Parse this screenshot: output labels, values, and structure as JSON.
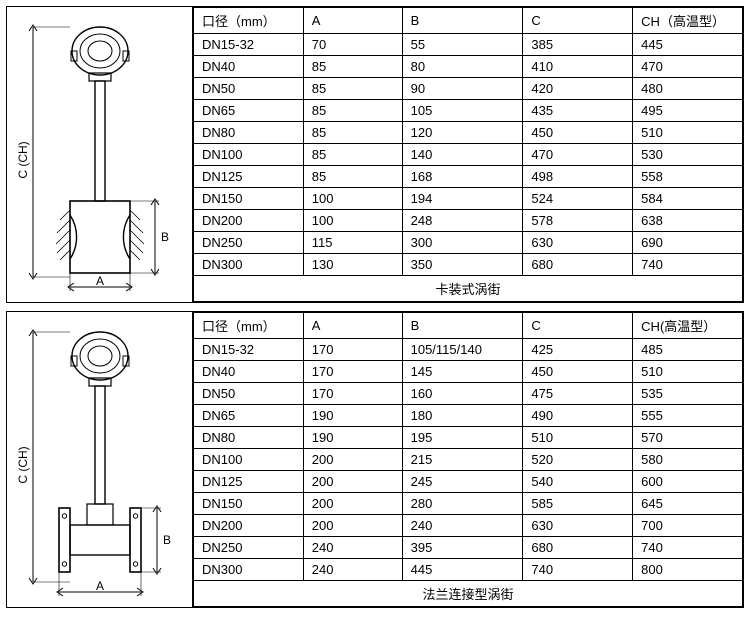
{
  "panels": [
    {
      "diagram": {
        "type": "wafer",
        "height_label": "C (CH)",
        "width_label": "A",
        "side_label": "B",
        "stroke": "#000000",
        "stroke_width": 1.2,
        "hatch_stroke": "#000000"
      },
      "table": {
        "columns": [
          "口径（mm）",
          "A",
          "B",
          "C",
          "CH（高温型）"
        ],
        "col_widths_pct": [
          20,
          18,
          22,
          20,
          20
        ],
        "rows": [
          [
            "DN15-32",
            "70",
            "55",
            "385",
            "445"
          ],
          [
            "DN40",
            "85",
            "80",
            "410",
            "470"
          ],
          [
            "DN50",
            "85",
            "90",
            "420",
            "480"
          ],
          [
            "DN65",
            "85",
            "105",
            "435",
            "495"
          ],
          [
            "DN80",
            "85",
            "120",
            "450",
            "510"
          ],
          [
            "DN100",
            "85",
            "140",
            "470",
            "530"
          ],
          [
            "DN125",
            "85",
            "168",
            "498",
            "558"
          ],
          [
            "DN150",
            "100",
            "194",
            "524",
            "584"
          ],
          [
            "DN200",
            "100",
            "248",
            "578",
            "638"
          ],
          [
            "DN250",
            "115",
            "300",
            "630",
            "690"
          ],
          [
            "DN300",
            "130",
            "350",
            "680",
            "740"
          ]
        ],
        "caption": "卡装式涡街"
      }
    },
    {
      "diagram": {
        "type": "flange",
        "height_label": "C (CH)",
        "width_label": "A",
        "side_label": "B",
        "stroke": "#000000",
        "stroke_width": 1.2
      },
      "table": {
        "columns": [
          "口径（mm）",
          "A",
          "B",
          "C",
          "CH(高温型）"
        ],
        "col_widths_pct": [
          20,
          18,
          22,
          20,
          20
        ],
        "rows": [
          [
            "DN15-32",
            "170",
            "105/115/140",
            "425",
            "485"
          ],
          [
            "DN40",
            "170",
            "145",
            "450",
            "510"
          ],
          [
            "DN50",
            "170",
            "160",
            "475",
            "535"
          ],
          [
            "DN65",
            "190",
            "180",
            "490",
            "555"
          ],
          [
            "DN80",
            "190",
            "195",
            "510",
            "570"
          ],
          [
            "DN100",
            "200",
            "215",
            "520",
            "580"
          ],
          [
            "DN125",
            "200",
            "245",
            "540",
            "600"
          ],
          [
            "DN150",
            "200",
            "280",
            "585",
            "645"
          ],
          [
            "DN200",
            "200",
            "240",
            "630",
            "700"
          ],
          [
            "DN250",
            "240",
            "395",
            "680",
            "740"
          ],
          [
            "DN300",
            "240",
            "445",
            "740",
            "800"
          ]
        ],
        "caption": "法兰连接型涡街"
      }
    }
  ]
}
